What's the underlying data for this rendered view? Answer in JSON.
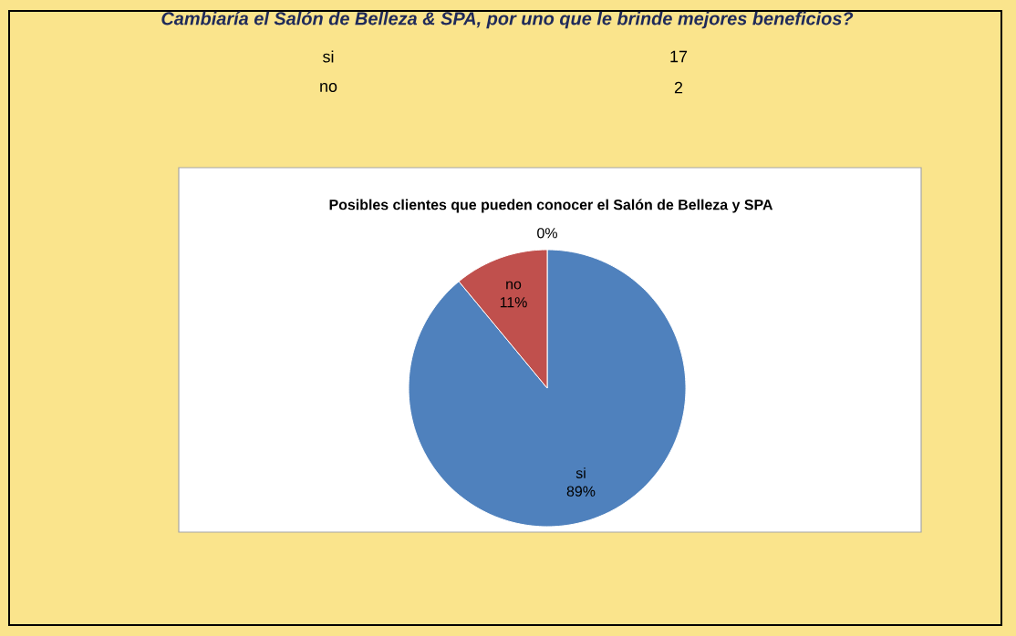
{
  "chart_data": {
    "type": "pie",
    "title": "Cambiaría el Salón de Belleza & SPA, por uno que le brinde mejores beneficios?",
    "subtitle": "Posibles clientes que pueden conocer el Salón de Belleza y SPA",
    "annotations": [
      "si",
      "17",
      "no",
      "2"
    ],
    "categories": [
      "si",
      "no",
      null
    ],
    "values": [
      89,
      11,
      0
    ],
    "colors": [
      "#4f81bd",
      "#c0504d",
      "#9bbb59"
    ],
    "value_labels": [
      "89%",
      "11%",
      "0%"
    ]
  }
}
